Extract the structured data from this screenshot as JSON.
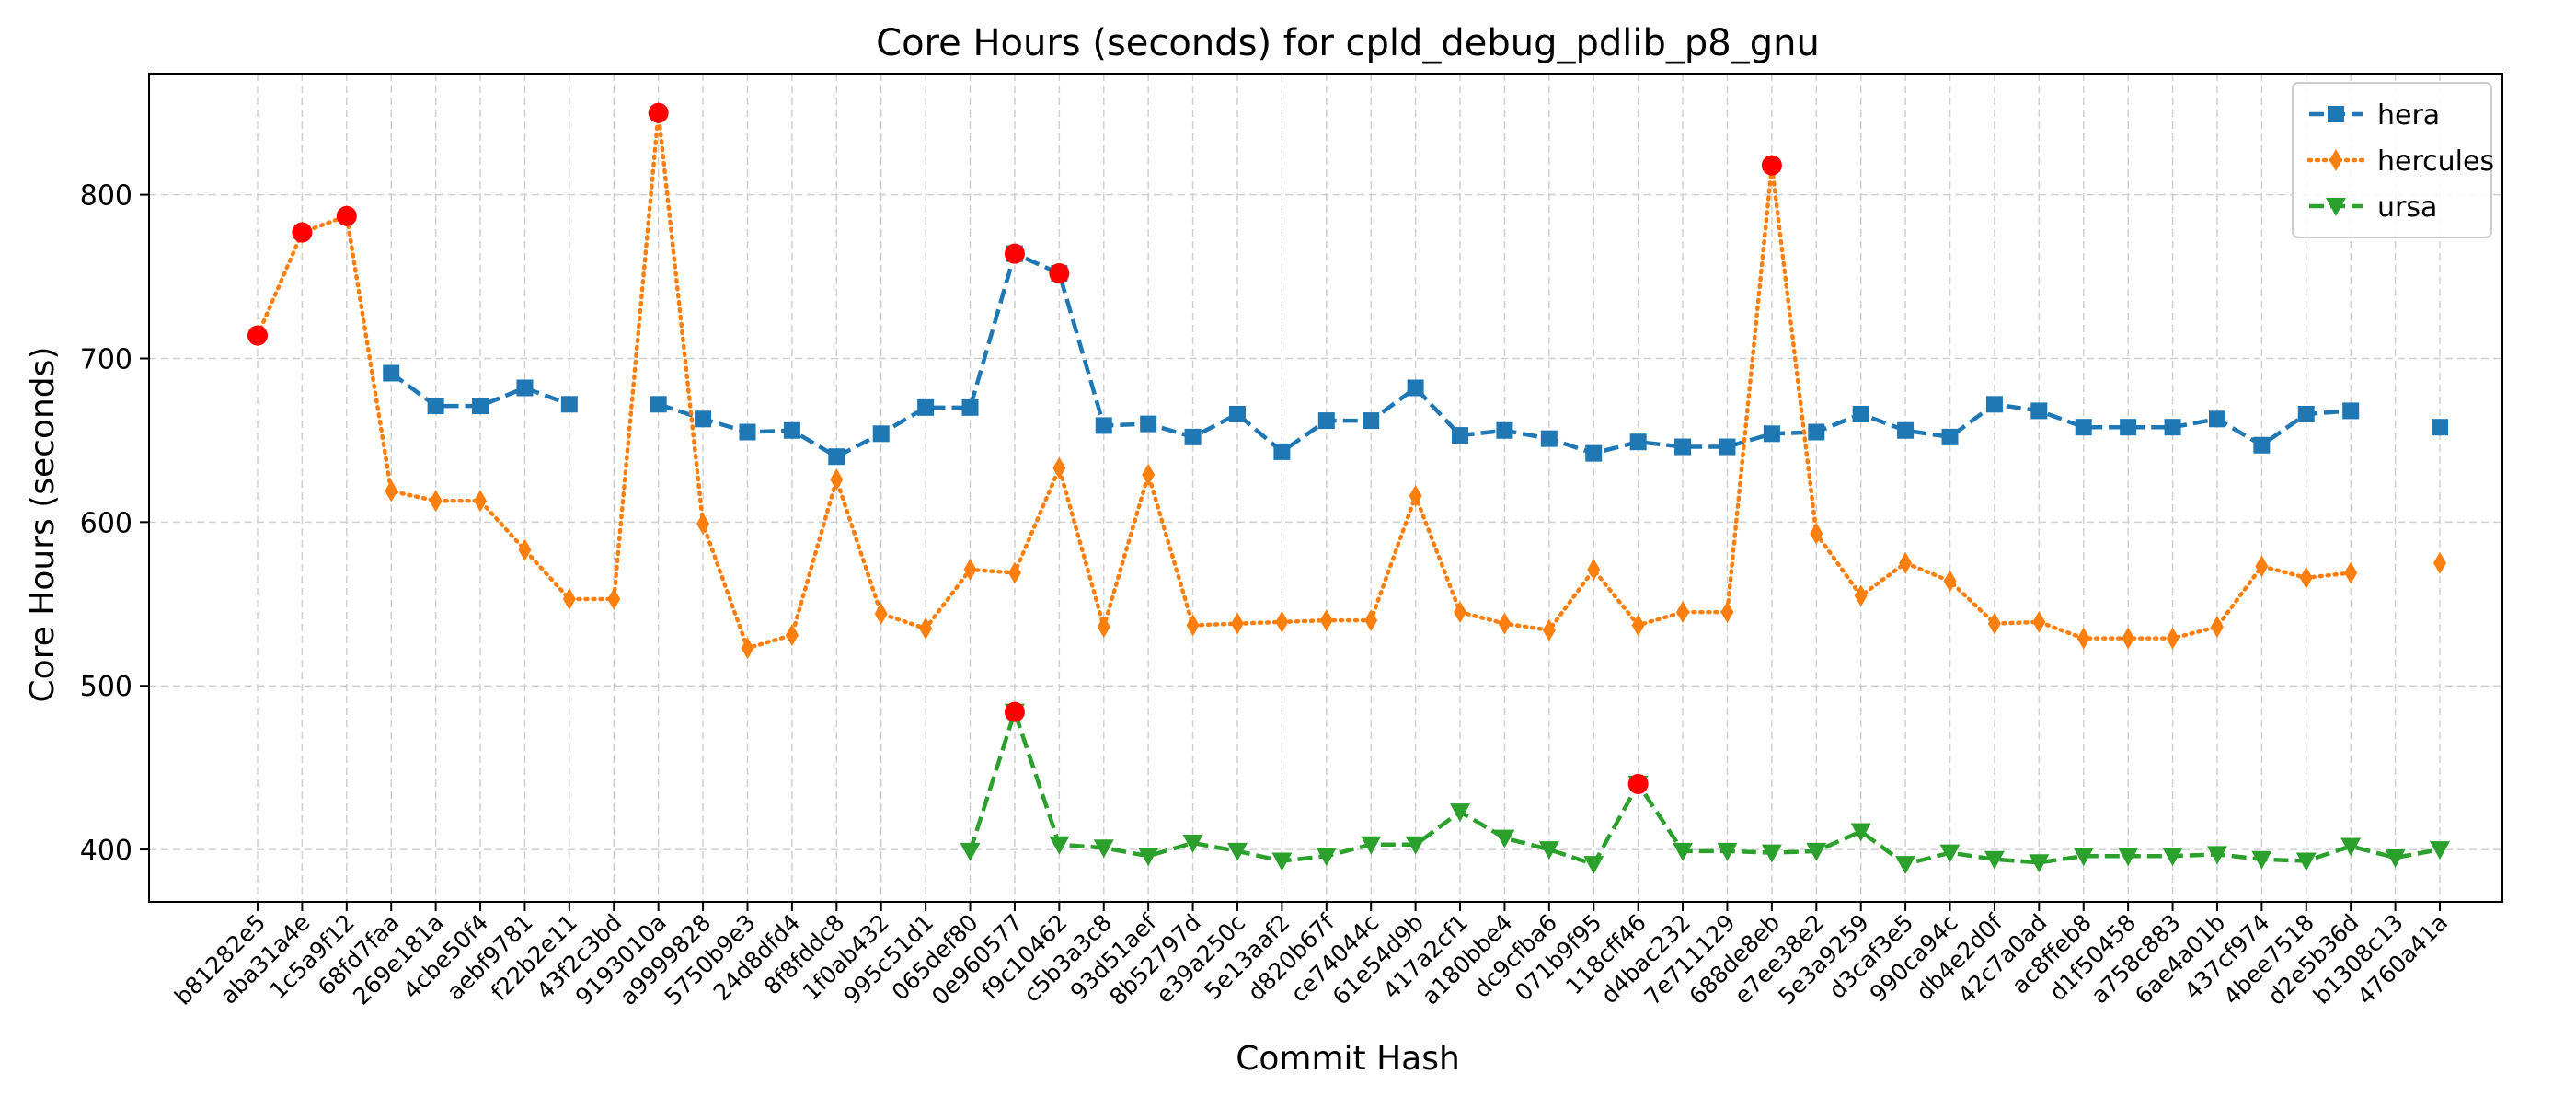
{
  "chart_data": {
    "type": "line",
    "title": "Core Hours (seconds) for cpld_debug_pdlib_p8_gnu",
    "xlabel": "Commit Hash",
    "ylabel": "Core Hours (seconds)",
    "ylim": [
      368,
      874
    ],
    "yticks": [
      400,
      500,
      600,
      700,
      800
    ],
    "grid": true,
    "legend_position": "top-right",
    "categories": [
      "b81282e5",
      "aba31a4e",
      "1c5a9f12",
      "68fd7faa",
      "269e181a",
      "4cbe50f4",
      "aebf9781",
      "f22b2e11",
      "43f2c3bd",
      "9193010a",
      "a9999828",
      "5750b9e3",
      "24d8dfd4",
      "8f8fddc8",
      "1f0ab432",
      "995c51d1",
      "065def80",
      "0e960577",
      "f9c10462",
      "c5b3a3c8",
      "93d51aef",
      "8b52797d",
      "e39a250c",
      "5e13aaf2",
      "d820b67f",
      "ce74044c",
      "61e54d9b",
      "417a2cf1",
      "a180bbe4",
      "dc9cfba6",
      "071b9f95",
      "118cff46",
      "d4bac232",
      "7e711129",
      "688de8eb",
      "e7ee38e2",
      "5e3a9259",
      "d3caf3e5",
      "990ca94c",
      "db4e2d0f",
      "42c7a0ad",
      "ac8ffeb8",
      "d1f50458",
      "a758c883",
      "6ae4a01b",
      "437cf974",
      "4bee7518",
      "d2e5b36d",
      "b1308c13",
      "4760a41a"
    ],
    "series": [
      {
        "name": "hera",
        "color": "#1f77b4",
        "marker": "square",
        "linestyle": "dashed",
        "values": [
          null,
          null,
          null,
          691,
          671,
          671,
          682,
          672,
          null,
          672,
          663,
          655,
          656,
          640,
          654,
          670,
          670,
          764,
          752,
          659,
          660,
          652,
          666,
          643,
          662,
          662,
          682,
          653,
          656,
          651,
          642,
          649,
          646,
          646,
          654,
          655,
          666,
          656,
          652,
          672,
          668,
          658,
          658,
          658,
          663,
          647,
          666,
          668,
          null,
          658
        ]
      },
      {
        "name": "hercules",
        "color": "#ff7f0e",
        "marker": "thin_diamond",
        "linestyle": "dotted",
        "values": [
          714,
          777,
          787,
          619,
          613,
          613,
          583,
          553,
          553,
          850,
          599,
          523,
          531,
          626,
          544,
          535,
          571,
          569,
          633,
          536,
          629,
          537,
          538,
          539,
          540,
          540,
          616,
          545,
          538,
          534,
          571,
          537,
          545,
          545,
          818,
          593,
          555,
          575,
          564,
          538,
          539,
          529,
          529,
          529,
          536,
          573,
          566,
          569,
          null,
          575
        ]
      },
      {
        "name": "ursa",
        "color": "#2ca02c",
        "marker": "triangle_down",
        "linestyle": "dashed",
        "values": [
          null,
          null,
          null,
          null,
          null,
          null,
          null,
          null,
          null,
          null,
          null,
          null,
          null,
          null,
          null,
          null,
          399,
          484,
          403,
          401,
          396,
          404,
          399,
          393,
          396,
          403,
          403,
          423,
          407,
          400,
          391,
          440,
          399,
          399,
          398,
          399,
          411,
          391,
          398,
          394,
          392,
          396,
          396,
          396,
          397,
          394,
          393,
          402,
          395,
          400
        ]
      }
    ],
    "highlight_points": [
      {
        "x": "b81282e5",
        "y": 714
      },
      {
        "x": "aba31a4e",
        "y": 777
      },
      {
        "x": "1c5a9f12",
        "y": 787
      },
      {
        "x": "9193010a",
        "y": 850
      },
      {
        "x": "0e960577",
        "y": 764
      },
      {
        "x": "f9c10462",
        "y": 752
      },
      {
        "x": "688de8eb",
        "y": 818
      },
      {
        "x": "0e960577",
        "y": 484
      },
      {
        "x": "118cff46",
        "y": 440
      }
    ],
    "highlight_color": "#ff0000"
  }
}
